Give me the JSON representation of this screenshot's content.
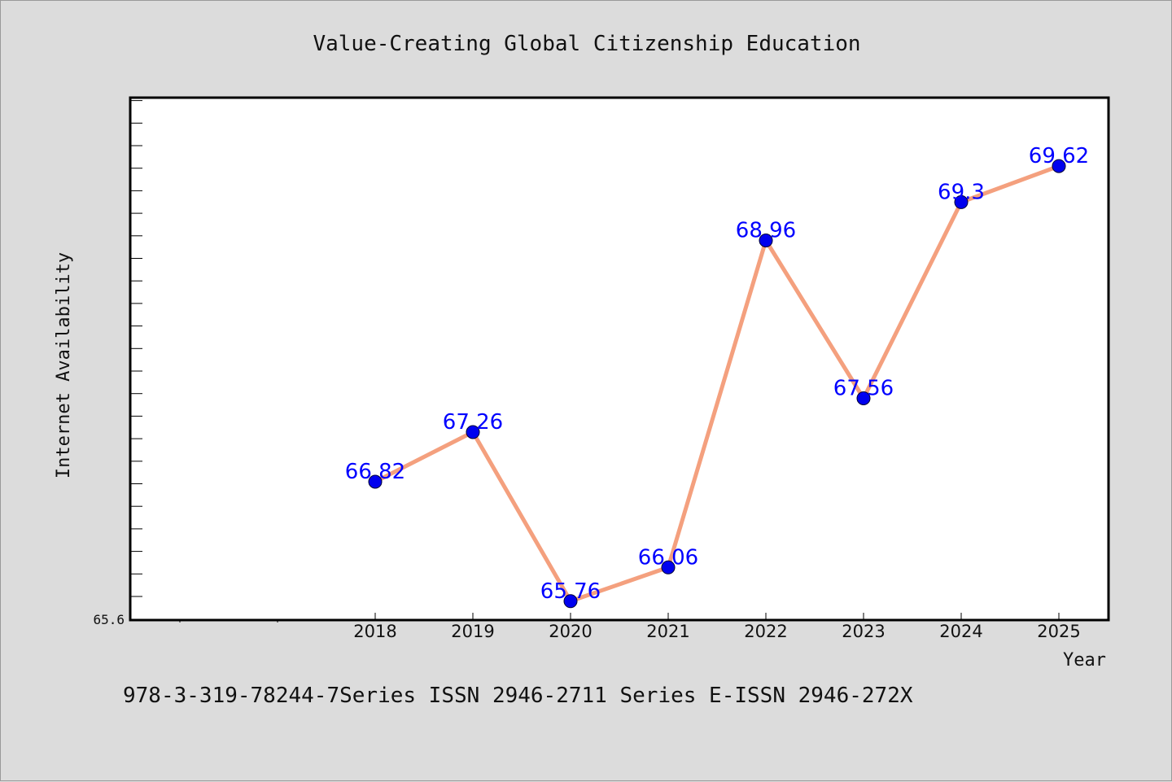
{
  "chart_data": {
    "type": "line",
    "title": "Value-Creating Global Citizenship Education",
    "xlabel": "Year",
    "ylabel": "Internet Availability",
    "x": [
      "2018",
      "2019",
      "2020",
      "2021",
      "2022",
      "2023",
      "2024",
      "2025"
    ],
    "series": [
      {
        "values": [
          66.82,
          67.26,
          65.76,
          66.06,
          68.96,
          67.56,
          69.3,
          69.62
        ]
      }
    ],
    "data_labels": [
      "66.82",
      "67.26",
      "65.76",
      "66.06",
      "68.96",
      "67.56",
      "69.3",
      "69.62"
    ],
    "y_min_label": "65.6",
    "ylim": [
      65.6,
      70.22
    ],
    "grid": false,
    "colors": {
      "line": "#f4a07e",
      "marker": "#0000ee",
      "label": "#0000ff",
      "background": "#dcdcdc",
      "plot_background": "#ffffff"
    }
  },
  "footer": "978-3-319-78244-7Series ISSN 2946-2711 Series E-ISSN 2946-272X"
}
